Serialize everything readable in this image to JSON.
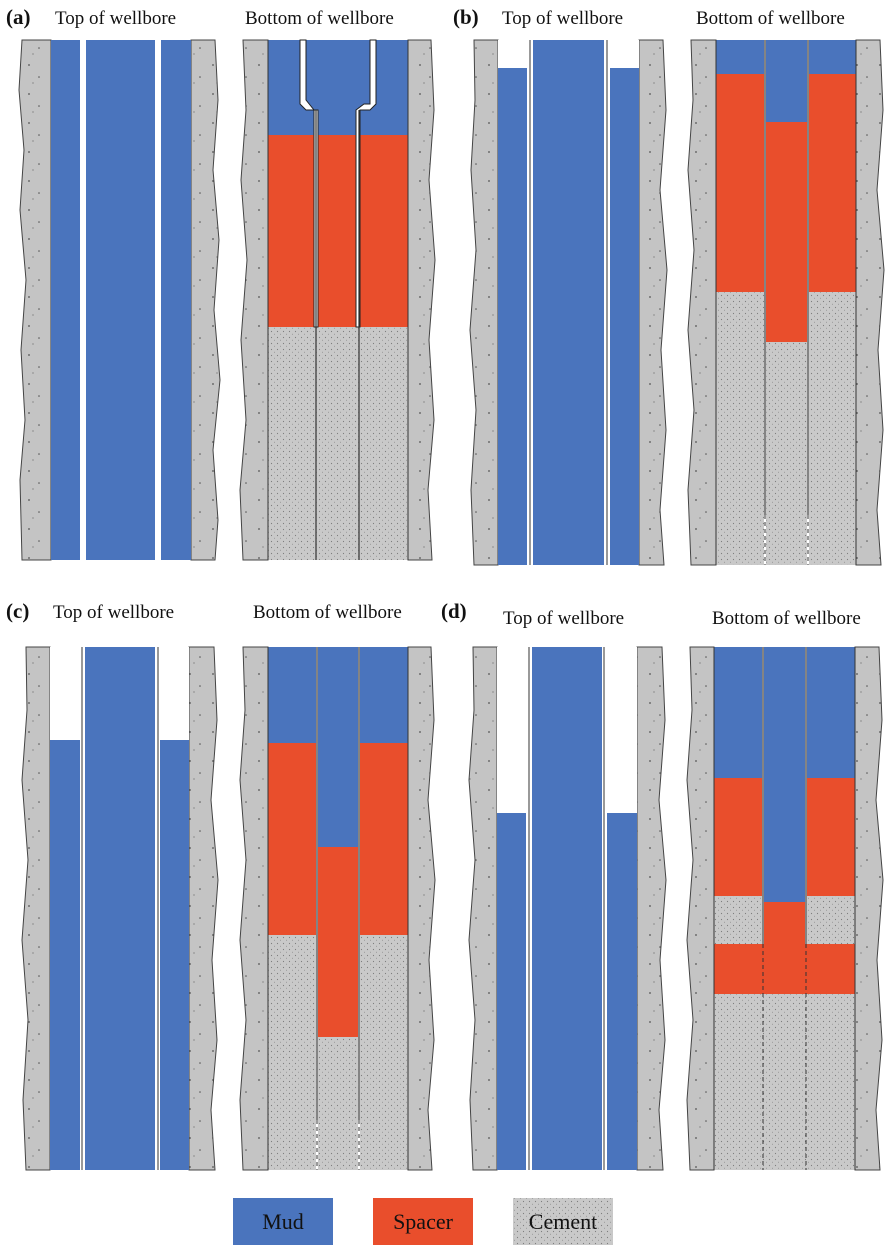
{
  "panels": [
    {
      "letter": "(a)",
      "top_title": "Top of wellbore",
      "bottom_title": "Bottom of wellbore"
    },
    {
      "letter": "(b)",
      "top_title": "Top of wellbore",
      "bottom_title": "Bottom of wellbore"
    },
    {
      "letter": "(c)",
      "top_title": "Top of wellbore",
      "bottom_title": "Bottom of wellbore"
    },
    {
      "letter": "(d)",
      "top_title": "Top of wellbore",
      "bottom_title": "Bottom of wellbore"
    }
  ],
  "legend": {
    "mud": "Mud",
    "spacer": "Spacer",
    "cement": "Cement"
  },
  "colors": {
    "mud": "#4a74bd",
    "spacer": "#e94e2c",
    "cement": "#c8c8c8",
    "formation": "#c4c4c4",
    "empty": "#ffffff"
  }
}
